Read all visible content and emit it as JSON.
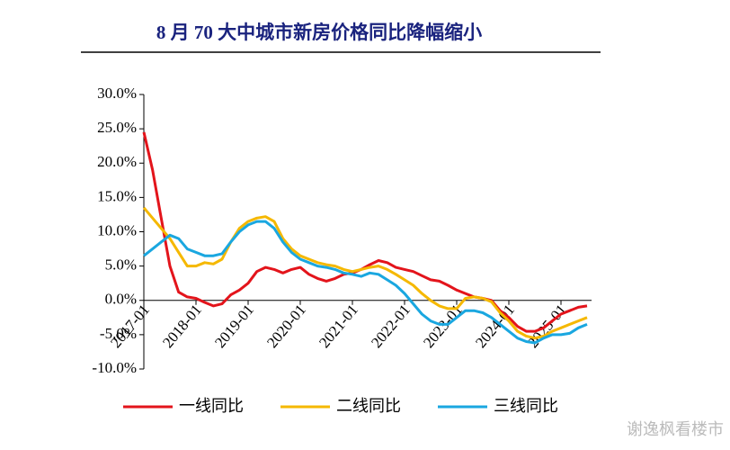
{
  "chart_data": {
    "type": "line",
    "title": "8 月 70 大中城市新房价格同比降幅缩小",
    "watermark": "谢逸枫看楼市",
    "x": [
      "2017-01",
      "2017-03",
      "2017-05",
      "2017-07",
      "2017-09",
      "2017-11",
      "2018-01",
      "2018-03",
      "2018-05",
      "2018-07",
      "2018-09",
      "2018-11",
      "2019-01",
      "2019-03",
      "2019-05",
      "2019-07",
      "2019-09",
      "2019-11",
      "2020-01",
      "2020-03",
      "2020-05",
      "2020-07",
      "2020-09",
      "2020-11",
      "2021-01",
      "2021-03",
      "2021-05",
      "2021-07",
      "2021-09",
      "2021-11",
      "2022-01",
      "2022-03",
      "2022-05",
      "2022-07",
      "2022-09",
      "2022-11",
      "2023-01",
      "2023-03",
      "2023-05",
      "2023-07",
      "2023-09",
      "2023-11",
      "2024-01",
      "2024-03",
      "2024-05",
      "2024-07",
      "2024-09",
      "2024-11",
      "2025-01",
      "2025-03",
      "2025-05",
      "2025-07"
    ],
    "xticks": [
      "2017-01",
      "2018-01",
      "2019-01",
      "2020-01",
      "2021-01",
      "2022-01",
      "2023-01",
      "2024-01",
      "2025-01"
    ],
    "ylim": [
      -10,
      30
    ],
    "yticks": [
      {
        "value": -10,
        "label": "-10.0%"
      },
      {
        "value": -5,
        "label": "-5.0%"
      },
      {
        "value": 0,
        "label": "0.0%"
      },
      {
        "value": 5,
        "label": "5.0%"
      },
      {
        "value": 10,
        "label": "10.0%"
      },
      {
        "value": 15,
        "label": "15.0%"
      },
      {
        "value": 20,
        "label": "20.0%"
      },
      {
        "value": 25,
        "label": "25.0%"
      },
      {
        "value": 30,
        "label": "30.0%"
      }
    ],
    "series": [
      {
        "name": "一线同比",
        "color": "#e3141b",
        "values": [
          24.5,
          19,
          12,
          5,
          1.2,
          0.5,
          0.3,
          -0.3,
          -0.8,
          -0.5,
          0.8,
          1.5,
          2.5,
          4.2,
          4.8,
          4.5,
          4.0,
          4.5,
          4.8,
          3.8,
          3.2,
          2.8,
          3.2,
          3.8,
          4.0,
          4.5,
          5.2,
          5.8,
          5.5,
          4.8,
          4.5,
          4.2,
          3.6,
          3.0,
          2.8,
          2.2,
          1.5,
          1.0,
          0.5,
          0.3,
          0,
          -1.5,
          -2.5,
          -3.8,
          -4.5,
          -4.5,
          -4.0,
          -3.0,
          -2.0,
          -1.5,
          -1.0,
          -0.8
        ]
      },
      {
        "name": "二线同比",
        "color": "#f5b800",
        "values": [
          13.5,
          12,
          10.5,
          9,
          7,
          5,
          5,
          5.5,
          5.3,
          6,
          8.5,
          10.5,
          11.5,
          12,
          12.2,
          11.5,
          9,
          7.5,
          6.5,
          6,
          5.5,
          5.2,
          5,
          4.5,
          4.2,
          4.5,
          4.8,
          5,
          4.5,
          3.8,
          3,
          2.2,
          1,
          0,
          -0.8,
          -1.2,
          -1.2,
          0.3,
          0.5,
          0.3,
          -0.2,
          -1.8,
          -3,
          -4.5,
          -5.2,
          -5.5,
          -5.2,
          -4.5,
          -4,
          -3.5,
          -3,
          -2.5
        ]
      },
      {
        "name": "三线同比",
        "color": "#1aa7e0",
        "values": [
          6.5,
          7.5,
          8.5,
          9.5,
          9,
          7.5,
          7,
          6.5,
          6.5,
          6.8,
          8.5,
          10,
          11,
          11.5,
          11.5,
          10.5,
          8.5,
          7,
          6,
          5.5,
          5,
          4.8,
          4.5,
          4,
          3.8,
          3.5,
          4,
          3.8,
          3,
          2.2,
          1,
          -0.5,
          -2,
          -3,
          -3.5,
          -3.5,
          -2.5,
          -1.5,
          -1.5,
          -1.8,
          -2.5,
          -3.5,
          -4.5,
          -5.5,
          -6,
          -6.2,
          -5.5,
          -5,
          -5,
          -4.8,
          -4,
          -3.5
        ]
      }
    ]
  }
}
